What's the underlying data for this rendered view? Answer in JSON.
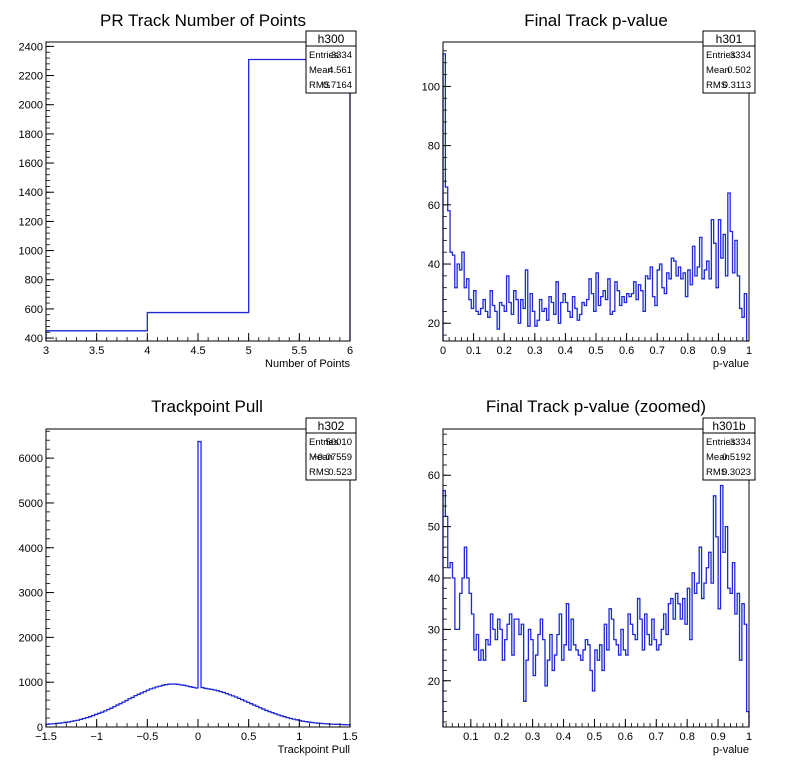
{
  "chart_data": [
    {
      "type": "histogram",
      "title": "PR Track Number of Points",
      "xlabel": "Number of Points",
      "ylabel": "",
      "xlim": [
        3,
        6
      ],
      "ylim": [
        380,
        2430
      ],
      "xticks": [
        3,
        3.5,
        4,
        4.5,
        5,
        5.5,
        6
      ],
      "xtick_labels": [
        "3",
        "3.5",
        "4",
        "4.5",
        "5",
        "5.5",
        "6"
      ],
      "yticks": [
        400,
        600,
        800,
        1000,
        1200,
        1400,
        1600,
        1800,
        2000,
        2200,
        2400
      ],
      "ytick_labels": [
        "400",
        "600",
        "800",
        "1000",
        "1200",
        "1400",
        "1600",
        "1800",
        "2000",
        "2200",
        "2400"
      ],
      "bin_edges": [
        3,
        4,
        5,
        6
      ],
      "values": [
        450,
        575,
        2310
      ],
      "stats": {
        "name": "h300",
        "rows": [
          {
            "label": "Entries",
            "value": "3334"
          },
          {
            "label": "Mean",
            "value": "4.561"
          },
          {
            "label": "RMS",
            "value": "0.7164"
          }
        ]
      }
    },
    {
      "type": "histogram",
      "title": "Final Track p-value",
      "xlabel": "p-value",
      "ylabel": "",
      "xlim": [
        0,
        1
      ],
      "ylim": [
        14,
        115
      ],
      "xticks": [
        0,
        0.1,
        0.2,
        0.3,
        0.4,
        0.5,
        0.6,
        0.7,
        0.8,
        0.9,
        1
      ],
      "xtick_labels": [
        "0",
        "0.1",
        "0.2",
        "0.3",
        "0.4",
        "0.5",
        "0.6",
        "0.7",
        "0.8",
        "0.9",
        "1"
      ],
      "yticks": [
        20,
        40,
        60,
        80,
        100
      ],
      "ytick_labels": [
        "20",
        "40",
        "60",
        "80",
        "100"
      ],
      "bin_edges_range": [
        0,
        1
      ],
      "values": [
        111,
        66,
        58,
        44,
        43,
        32,
        40,
        38,
        44,
        32,
        35,
        28,
        25,
        31,
        24,
        23,
        25,
        28,
        24,
        22,
        31,
        26,
        24,
        18,
        27,
        26,
        24,
        36,
        27,
        23,
        31,
        28,
        20,
        28,
        25,
        38,
        19,
        30,
        24,
        19,
        21,
        28,
        24,
        25,
        21,
        29,
        27,
        23,
        34,
        20,
        27,
        30,
        27,
        24,
        22,
        29,
        25,
        21,
        23,
        27,
        26,
        28,
        35,
        30,
        24,
        37,
        26,
        29,
        31,
        28,
        35,
        23,
        24,
        34,
        31,
        26,
        29,
        27,
        30,
        29,
        30,
        34,
        28,
        33,
        31,
        24,
        36,
        35,
        39,
        29,
        26,
        38,
        40,
        32,
        30,
        37,
        35,
        42,
        41,
        36,
        39,
        35,
        37,
        29,
        38,
        33,
        46,
        36,
        39,
        49,
        35,
        38,
        41,
        35,
        55,
        47,
        32,
        55,
        42,
        50,
        36,
        64,
        51,
        37,
        48,
        36,
        25,
        22,
        30,
        14
      ],
      "stats": {
        "name": "h301",
        "rows": [
          {
            "label": "Entries",
            "value": "3334"
          },
          {
            "label": "Mean",
            "value": "0.502"
          },
          {
            "label": "RMS",
            "value": "0.3113"
          }
        ]
      }
    },
    {
      "type": "histogram",
      "title": "Trackpoint Pull",
      "xlabel": "Trackpoint Pull",
      "ylabel": "",
      "xlim": [
        -1.5,
        1.5
      ],
      "ylim": [
        0,
        6650
      ],
      "xticks": [
        -1.5,
        -1,
        -0.5,
        0,
        0.5,
        1,
        1.5
      ],
      "xtick_labels": [
        "−1.5",
        "−1",
        "−0.5",
        "0",
        "0.5",
        "1",
        "1.5"
      ],
      "yticks": [
        0,
        1000,
        2000,
        3000,
        4000,
        5000,
        6000
      ],
      "ytick_labels": [
        "0",
        "1000",
        "2000",
        "3000",
        "4000",
        "5000",
        "6000"
      ],
      "bin_edges_range": [
        -1.5,
        1.5
      ],
      "values": [
        60,
        70,
        72,
        80,
        85,
        95,
        105,
        110,
        125,
        140,
        150,
        170,
        190,
        210,
        230,
        255,
        280,
        305,
        330,
        360,
        390,
        420,
        455,
        490,
        520,
        555,
        590,
        630,
        660,
        700,
        730,
        760,
        790,
        820,
        850,
        870,
        895,
        910,
        930,
        945,
        955,
        960,
        958,
        950,
        940,
        930,
        915,
        900,
        885,
        870,
        6370,
        880,
        860,
        850,
        840,
        825,
        810,
        790,
        770,
        745,
        720,
        695,
        670,
        640,
        610,
        580,
        550,
        520,
        490,
        460,
        430,
        400,
        370,
        345,
        320,
        295,
        270,
        250,
        230,
        210,
        190,
        175,
        160,
        145,
        130,
        120,
        110,
        100,
        92,
        85,
        80,
        75,
        70,
        65,
        62,
        60,
        58,
        55,
        52,
        50
      ],
      "stats": {
        "name": "h302",
        "rows": [
          {
            "label": "Entries",
            "value": "50010"
          },
          {
            "label": "Mean",
            "value": "−0.07559"
          },
          {
            "label": "RMS",
            "value": "0.523"
          }
        ]
      }
    },
    {
      "type": "histogram",
      "title": "Final Track p-value (zoomed)",
      "xlabel": "p-value",
      "ylabel": "",
      "xlim": [
        0.01,
        1
      ],
      "ylim": [
        11,
        69
      ],
      "xticks": [
        0.1,
        0.2,
        0.3,
        0.4,
        0.5,
        0.6,
        0.7,
        0.8,
        0.9,
        1
      ],
      "xtick_labels": [
        "0.1",
        "0.2",
        "0.3",
        "0.4",
        "0.5",
        "0.6",
        "0.7",
        "0.8",
        "0.9",
        "1"
      ],
      "yticks": [
        20,
        30,
        40,
        50,
        60
      ],
      "ytick_labels": [
        "20",
        "30",
        "40",
        "50",
        "60"
      ],
      "bin_edges_range": [
        0.01,
        1
      ],
      "values": [
        57,
        52,
        42,
        43,
        40,
        30,
        30,
        37,
        40,
        46,
        40,
        37,
        33,
        26,
        29,
        24,
        26,
        24,
        28,
        27,
        33,
        30,
        28,
        32,
        30,
        24,
        28,
        31,
        33,
        25,
        32,
        32,
        29,
        31,
        16,
        24,
        30,
        28,
        21,
        25,
        29,
        32,
        28,
        19,
        24,
        29,
        22,
        25,
        29,
        33,
        24,
        27,
        35,
        26,
        32,
        27,
        26,
        25,
        24,
        26,
        28,
        27,
        22,
        18,
        26,
        24,
        27,
        22,
        31,
        26,
        34,
        32,
        28,
        27,
        25,
        30,
        26,
        25,
        33,
        31,
        29,
        28,
        36,
        32,
        26,
        33,
        29,
        27,
        32,
        28,
        26,
        27,
        30,
        33,
        29,
        35,
        36,
        32,
        37,
        35,
        32,
        36,
        31,
        38,
        28,
        41,
        37,
        39,
        46,
        36,
        39,
        42,
        45,
        39,
        56,
        48,
        34,
        58,
        45,
        50,
        38,
        37,
        43,
        33,
        37,
        24,
        35,
        31,
        14
      ],
      "stats": {
        "name": "h301b",
        "rows": [
          {
            "label": "Entries",
            "value": "3334"
          },
          {
            "label": "Mean",
            "value": "0.5192"
          },
          {
            "label": "RMS",
            "value": "0.3023"
          }
        ]
      }
    }
  ]
}
